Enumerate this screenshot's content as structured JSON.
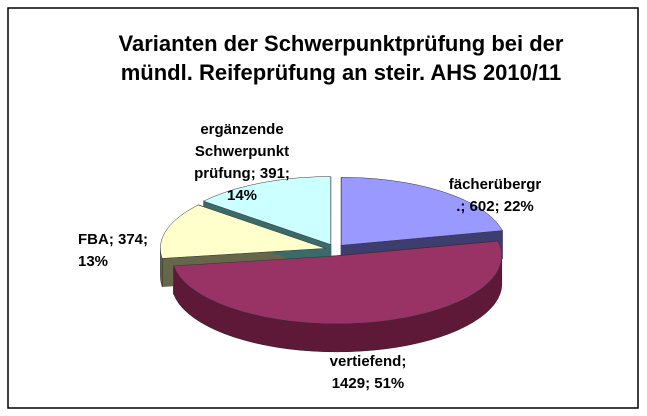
{
  "chart_data": {
    "type": "pie3d",
    "title": [
      "Varianten der Schwerpunktprüfung bei der",
      "mündl. Reifeprüfung an steir. AHS 2010/11"
    ],
    "values": [
      602,
      1429,
      374,
      391
    ],
    "value_labels": [
      [
        "fächerübergr",
        ".; 602; 22%"
      ],
      [
        "vertiefend;",
        "1429; 51%"
      ],
      [
        "FBA; 374;",
        "13%"
      ],
      [
        "ergänzende",
        "Schwerpunkt",
        "prüfung; 391;",
        "14%"
      ]
    ],
    "colors": [
      "#9999ff",
      "#993366",
      "#ffffcc",
      "#ccffff"
    ],
    "side_colors": [
      "#3d3d70",
      "#5e1838",
      "#66664a",
      "#3a6a6a"
    ]
  }
}
